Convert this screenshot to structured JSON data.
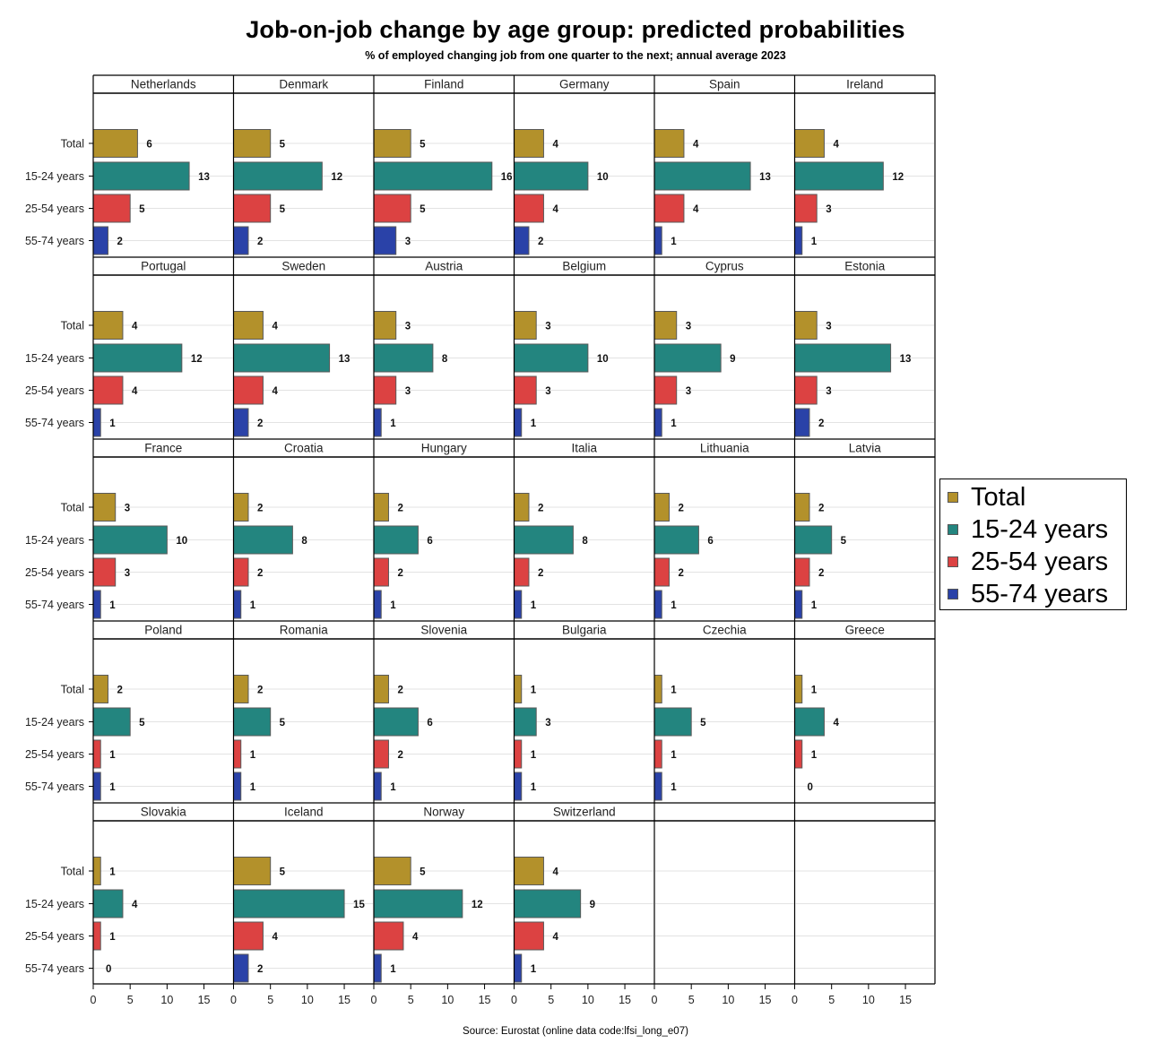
{
  "chart_data": {
    "type": "bar",
    "orientation": "horizontal",
    "layout": "panel-grid",
    "title": "Job-on-job change by age group: predicted probabilities",
    "subtitle": "% of employed changing job from one quarter to the next; annual average 2023",
    "source": "Source: Eurostat (online data code:lfsi_long_e07)",
    "categories": [
      "Total",
      "15-24 years",
      "25-54 years",
      "55-74 years"
    ],
    "category_colors": [
      "#B3912B",
      "#23857F",
      "#DC4242",
      "#2A42A8"
    ],
    "xlim": [
      0,
      19
    ],
    "xticks": [
      0,
      5,
      10,
      15
    ],
    "legend_position": "right",
    "panels": [
      {
        "country": "Netherlands",
        "values": [
          6,
          13,
          5,
          2
        ]
      },
      {
        "country": "Denmark",
        "values": [
          5,
          12,
          5,
          2
        ]
      },
      {
        "country": "Finland",
        "values": [
          5,
          16,
          5,
          3
        ]
      },
      {
        "country": "Germany",
        "values": [
          4,
          10,
          4,
          2
        ]
      },
      {
        "country": "Spain",
        "values": [
          4,
          13,
          4,
          1
        ]
      },
      {
        "country": "Ireland",
        "values": [
          4,
          12,
          3,
          1
        ]
      },
      {
        "country": "Portugal",
        "values": [
          4,
          12,
          4,
          1
        ]
      },
      {
        "country": "Sweden",
        "values": [
          4,
          13,
          4,
          2
        ]
      },
      {
        "country": "Austria",
        "values": [
          3,
          8,
          3,
          1
        ]
      },
      {
        "country": "Belgium",
        "values": [
          3,
          10,
          3,
          1
        ]
      },
      {
        "country": "Cyprus",
        "values": [
          3,
          9,
          3,
          1
        ]
      },
      {
        "country": "Estonia",
        "values": [
          3,
          13,
          3,
          2
        ]
      },
      {
        "country": "France",
        "values": [
          3,
          10,
          3,
          1
        ]
      },
      {
        "country": "Croatia",
        "values": [
          2,
          8,
          2,
          1
        ]
      },
      {
        "country": "Hungary",
        "values": [
          2,
          6,
          2,
          1
        ]
      },
      {
        "country": "Italia",
        "values": [
          2,
          8,
          2,
          1
        ]
      },
      {
        "country": "Lithuania",
        "values": [
          2,
          6,
          2,
          1
        ]
      },
      {
        "country": "Latvia",
        "values": [
          2,
          5,
          2,
          1
        ]
      },
      {
        "country": "Poland",
        "values": [
          2,
          5,
          1,
          1
        ]
      },
      {
        "country": "Romania",
        "values": [
          2,
          5,
          1,
          1
        ]
      },
      {
        "country": "Slovenia",
        "values": [
          2,
          6,
          2,
          1
        ]
      },
      {
        "country": "Bulgaria",
        "values": [
          1,
          3,
          1,
          1
        ]
      },
      {
        "country": "Czechia",
        "values": [
          1,
          5,
          1,
          1
        ]
      },
      {
        "country": "Greece",
        "values": [
          1,
          4,
          1,
          0
        ]
      },
      {
        "country": "Slovakia",
        "values": [
          1,
          4,
          1,
          0
        ]
      },
      {
        "country": "Iceland",
        "values": [
          5,
          15,
          4,
          2
        ]
      },
      {
        "country": "Norway",
        "values": [
          5,
          12,
          4,
          1
        ]
      },
      {
        "country": "Switzerland",
        "values": [
          4,
          9,
          4,
          1
        ]
      }
    ]
  }
}
